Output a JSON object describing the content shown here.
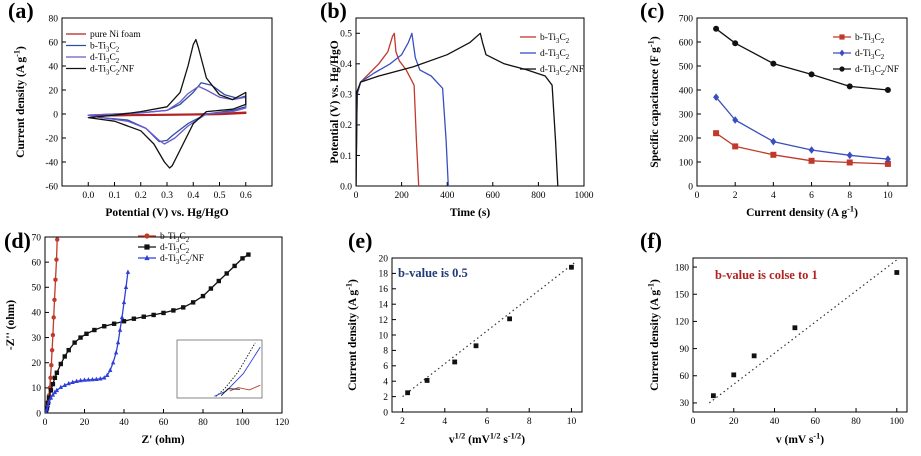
{
  "figure": {
    "background": "#ffffff"
  },
  "chart_data": [
    {
      "id": "a",
      "panel_label": "(a)",
      "type": "line",
      "xlabel": "Potential (V) vs. Hg/HgO",
      "ylabel": "Current density (A g<sup>-1</sup>)",
      "xlim": [
        -0.1,
        0.7
      ],
      "ylim": [
        -60,
        80
      ],
      "xticks": [
        0.0,
        0.1,
        0.2,
        0.3,
        0.4,
        0.5,
        0.6
      ],
      "xtick_labels": [
        "0.0",
        "0.1",
        "0.2",
        "0.3",
        "0.4",
        "0.5",
        "0.6"
      ],
      "yticks": [
        -60,
        -40,
        -20,
        0,
        20,
        40,
        60,
        80
      ],
      "ytick_labels": [
        "-60",
        "-40",
        "-20",
        "0",
        "20",
        "40",
        "60",
        "80"
      ],
      "legend_position": "top-left",
      "series": [
        {
          "name": "pure Ni foam",
          "color": "#b22222",
          "closed": true,
          "x": [
            0.0,
            0.2,
            0.4,
            0.5,
            0.6,
            0.6,
            0.5,
            0.3,
            0.1,
            0.0
          ],
          "y": [
            -1,
            -0.5,
            0,
            0.5,
            1.5,
            0.5,
            -0.5,
            -1,
            -1.5,
            -1
          ]
        },
        {
          "name": "b-Ti<sub>3</sub>C<sub>2</sub>",
          "color": "#2f4f9f",
          "closed": true,
          "x": [
            0.0,
            0.1,
            0.2,
            0.3,
            0.35,
            0.4,
            0.43,
            0.47,
            0.52,
            0.57,
            0.6,
            0.6,
            0.55,
            0.45,
            0.38,
            0.32,
            0.3,
            0.27,
            0.22,
            0.15,
            0.05,
            0.0
          ],
          "y": [
            -1,
            0,
            1,
            3,
            8,
            18,
            26,
            24,
            16,
            13,
            15,
            6,
            3,
            0,
            -8,
            -18,
            -22,
            -23,
            -12,
            -5,
            -3,
            -1
          ]
        },
        {
          "name": "d-Ti<sub>3</sub>C<sub>2</sub>",
          "color": "#6a5acd",
          "closed": true,
          "x": [
            0.0,
            0.1,
            0.2,
            0.3,
            0.35,
            0.38,
            0.42,
            0.45,
            0.5,
            0.55,
            0.6,
            0.6,
            0.55,
            0.45,
            0.38,
            0.33,
            0.29,
            0.27,
            0.22,
            0.15,
            0.05,
            0.0
          ],
          "y": [
            -1,
            0,
            1,
            3,
            10,
            17,
            23,
            20,
            14,
            12,
            14,
            5,
            2,
            0,
            -10,
            -20,
            -25,
            -22,
            -12,
            -6,
            -3,
            -1
          ]
        },
        {
          "name": "d-Ti<sub>3</sub>C<sub>2</sub>/NF",
          "color": "#111111",
          "closed": true,
          "x": [
            0.0,
            0.1,
            0.2,
            0.3,
            0.35,
            0.38,
            0.4,
            0.41,
            0.42,
            0.45,
            0.5,
            0.55,
            0.6,
            0.6,
            0.55,
            0.45,
            0.4,
            0.35,
            0.32,
            0.31,
            0.29,
            0.25,
            0.2,
            0.1,
            0.0
          ],
          "y": [
            -3,
            -1,
            2,
            6,
            18,
            40,
            58,
            62,
            55,
            30,
            16,
            12,
            18,
            8,
            4,
            2,
            -8,
            -30,
            -43,
            -45,
            -40,
            -25,
            -14,
            -6,
            -3
          ]
        }
      ]
    },
    {
      "id": "b",
      "panel_label": "(b)",
      "type": "line",
      "xlabel": "Time (s)",
      "ylabel": "Potential (V) vs. Hg/HgO",
      "xlim": [
        0,
        1000
      ],
      "ylim": [
        0,
        0.55
      ],
      "xticks": [
        0,
        200,
        400,
        600,
        800,
        1000
      ],
      "xtick_labels": [
        "0",
        "200",
        "400",
        "600",
        "800",
        "1000"
      ],
      "yticks": [
        0.0,
        0.1,
        0.2,
        0.3,
        0.4,
        0.5
      ],
      "ytick_labels": [
        "0.0",
        "0.1",
        "0.2",
        "0.3",
        "0.4",
        "0.5"
      ],
      "legend_position": "top-right",
      "series": [
        {
          "name": "b-Ti<sub>3</sub>C<sub>2</sub>",
          "color": "#c0392b",
          "x": [
            0,
            5,
            20,
            60,
            100,
            140,
            160,
            168,
            175,
            190,
            220,
            255,
            265,
            275
          ],
          "y": [
            0.0,
            0.3,
            0.34,
            0.37,
            0.4,
            0.44,
            0.49,
            0.5,
            0.44,
            0.41,
            0.38,
            0.33,
            0.15,
            0.0
          ]
        },
        {
          "name": "d-Ti<sub>3</sub>C<sub>2</sub>",
          "color": "#3a4fbf",
          "x": [
            0,
            5,
            20,
            80,
            150,
            200,
            230,
            245,
            260,
            280,
            330,
            380,
            395,
            405
          ],
          "y": [
            0.0,
            0.3,
            0.34,
            0.37,
            0.4,
            0.43,
            0.47,
            0.5,
            0.42,
            0.38,
            0.36,
            0.32,
            0.15,
            0.0
          ]
        },
        {
          "name": "d-Ti<sub>3</sub>C<sub>2</sub>/NF",
          "color": "#111111",
          "x": [
            0,
            5,
            20,
            100,
            250,
            400,
            500,
            545,
            555,
            570,
            650,
            750,
            830,
            860,
            875,
            885
          ],
          "y": [
            0.0,
            0.31,
            0.34,
            0.36,
            0.39,
            0.43,
            0.47,
            0.5,
            0.47,
            0.43,
            0.4,
            0.38,
            0.36,
            0.33,
            0.15,
            0.0
          ]
        }
      ]
    },
    {
      "id": "c",
      "panel_label": "(c)",
      "type": "line",
      "xlabel": "Current density (A g<sup>-1</sup>)",
      "ylabel": "Specific capacitance (F g<sup>-1</sup>)",
      "xlim": [
        0,
        11
      ],
      "ylim": [
        0,
        700
      ],
      "xticks": [
        0,
        2,
        4,
        6,
        8,
        10
      ],
      "xtick_labels": [
        "0",
        "2",
        "4",
        "6",
        "8",
        "10"
      ],
      "yticks": [
        0,
        100,
        200,
        300,
        400,
        500,
        600,
        700
      ],
      "ytick_labels": [
        "0",
        "100",
        "200",
        "300",
        "400",
        "500",
        "600",
        "700"
      ],
      "legend_position": "right",
      "series": [
        {
          "name": "b-Ti<sub>3</sub>C<sub>2</sub>",
          "color": "#c0392b",
          "marker": "square",
          "x": [
            1,
            2,
            4,
            6,
            8,
            10
          ],
          "y": [
            220,
            165,
            130,
            105,
            98,
            92
          ]
        },
        {
          "name": "d-Ti<sub>3</sub>C<sub>2</sub>",
          "color": "#3a4fbf",
          "marker": "diamond",
          "x": [
            1,
            2,
            4,
            6,
            8,
            10
          ],
          "y": [
            370,
            275,
            185,
            150,
            128,
            112
          ]
        },
        {
          "name": "d-Ti<sub>3</sub>C<sub>2</sub>/NF",
          "color": "#111111",
          "marker": "circle",
          "x": [
            1,
            2,
            4,
            6,
            8,
            10
          ],
          "y": [
            655,
            595,
            510,
            465,
            415,
            400
          ]
        }
      ]
    },
    {
      "id": "d",
      "panel_label": "(d)",
      "type": "line",
      "xlabel": "Z' (ohm)",
      "ylabel": "-Z'' (ohm)",
      "xlim": [
        0,
        120
      ],
      "ylim": [
        0,
        70
      ],
      "xticks": [
        0,
        20,
        40,
        60,
        80,
        100,
        120
      ],
      "xtick_labels": [
        "0",
        "20",
        "40",
        "60",
        "80",
        "100",
        "120"
      ],
      "yticks": [
        0,
        10,
        20,
        30,
        40,
        50,
        60,
        70
      ],
      "ytick_labels": [
        "0",
        "10",
        "20",
        "30",
        "40",
        "50",
        "60",
        "70"
      ],
      "legend_position": "top-left",
      "series": [
        {
          "name": "b-Ti<sub>3</sub>C<sub>2</sub>",
          "color": "#c0392b",
          "marker": "circle",
          "x": [
            0.4,
            0.8,
            1.2,
            1.6,
            2.0,
            2.4,
            2.8,
            3.2,
            3.6,
            4.0,
            4.4,
            4.8,
            5.3,
            5.8,
            6.2
          ],
          "y": [
            0.2,
            1.0,
            2.5,
            4.5,
            7,
            10,
            14,
            19,
            25,
            31,
            38,
            45,
            53,
            61,
            69
          ]
        },
        {
          "name": "d-Ti<sub>3</sub>C<sub>2</sub>",
          "color": "#111111",
          "marker": "square",
          "x": [
            0.5,
            1,
            1.5,
            2,
            3,
            4,
            5,
            6,
            8,
            10,
            12,
            15,
            18,
            21,
            25,
            30,
            35,
            40,
            45,
            50,
            55,
            60,
            65,
            70,
            75,
            80,
            84,
            88,
            92,
            96,
            100,
            103
          ],
          "y": [
            0.5,
            2,
            4,
            6,
            9,
            11.5,
            14,
            16,
            19.5,
            22.5,
            25,
            28,
            30,
            31.5,
            33,
            34.5,
            35.5,
            36.5,
            37.5,
            38.3,
            39,
            39.8,
            40.8,
            42,
            44,
            46.5,
            49.5,
            52.5,
            55.5,
            58.5,
            61.5,
            63
          ]
        },
        {
          "name": "d-Ti<sub>3</sub>C<sub>2</sub>/NF",
          "color": "#2f3fd8",
          "marker": "triangle",
          "x": [
            0.5,
            1,
            1.5,
            2,
            3,
            4,
            5,
            6,
            8,
            10,
            12,
            14,
            16,
            18,
            20,
            22,
            24,
            26,
            28,
            30,
            31.5,
            33,
            34.5,
            36,
            37,
            38,
            39,
            40,
            41,
            42
          ],
          "y": [
            0.3,
            1.5,
            3,
            4.5,
            6,
            7.2,
            8.2,
            9,
            10.2,
            11,
            11.7,
            12.2,
            12.6,
            12.9,
            13.1,
            13.2,
            13.3,
            13.4,
            13.6,
            14.0,
            15,
            17,
            20,
            24,
            28,
            33,
            38,
            44,
            50,
            56
          ]
        }
      ]
    },
    {
      "id": "e",
      "panel_label": "(e)",
      "type": "scatter",
      "xlabel": "v<sup>1/2</sup> (mV<sup>1/2</sup> s<sup>-1/2</sup>)",
      "ylabel": "Current density (A g<sup>-1</sup>)",
      "annotation": "b-value is 0.5",
      "annotation_color": "#1f3a7a",
      "xlim": [
        1.5,
        10.5
      ],
      "ylim": [
        0,
        20
      ],
      "xticks": [
        2,
        4,
        6,
        8,
        10
      ],
      "xtick_labels": [
        "2",
        "4",
        "6",
        "8",
        "10"
      ],
      "yticks": [
        0,
        2,
        4,
        6,
        8,
        10,
        12,
        14,
        16,
        18,
        20
      ],
      "ytick_labels": [
        "0",
        "2",
        "4",
        "6",
        "8",
        "10",
        "12",
        "14",
        "16",
        "18",
        "20"
      ],
      "series": [
        {
          "name": "",
          "color": "#111111",
          "marker": "square",
          "x": [
            2.24,
            3.16,
            4.47,
            5.48,
            7.07,
            10.0
          ],
          "y": [
            2.5,
            4.1,
            6.5,
            8.6,
            12.1,
            18.8
          ]
        }
      ],
      "fit_line": {
        "x": [
          2.0,
          10.2
        ],
        "y": [
          2.0,
          19.5
        ]
      }
    },
    {
      "id": "f",
      "panel_label": "(f)",
      "type": "scatter",
      "xlabel": "v (mV s<sup>-1</sup>)",
      "ylabel": "Current density (A g<sup>-1</sup>)",
      "annotation": "b-value is colse to 1",
      "annotation_color": "#b22222",
      "xlim": [
        0,
        105
      ],
      "ylim": [
        20,
        190
      ],
      "xticks": [
        0,
        20,
        40,
        60,
        80,
        100
      ],
      "xtick_labels": [
        "0",
        "20",
        "40",
        "60",
        "80",
        "100"
      ],
      "yticks": [
        30,
        60,
        90,
        120,
        150,
        180
      ],
      "ytick_labels": [
        "30",
        "60",
        "90",
        "120",
        "150",
        "180"
      ],
      "series": [
        {
          "name": "",
          "color": "#111111",
          "marker": "square",
          "x": [
            10,
            20,
            30,
            50,
            100
          ],
          "y": [
            38,
            61,
            82,
            113,
            174
          ]
        }
      ],
      "fit_line": {
        "x": [
          8,
          100
        ],
        "y": [
          30,
          188
        ]
      }
    }
  ]
}
